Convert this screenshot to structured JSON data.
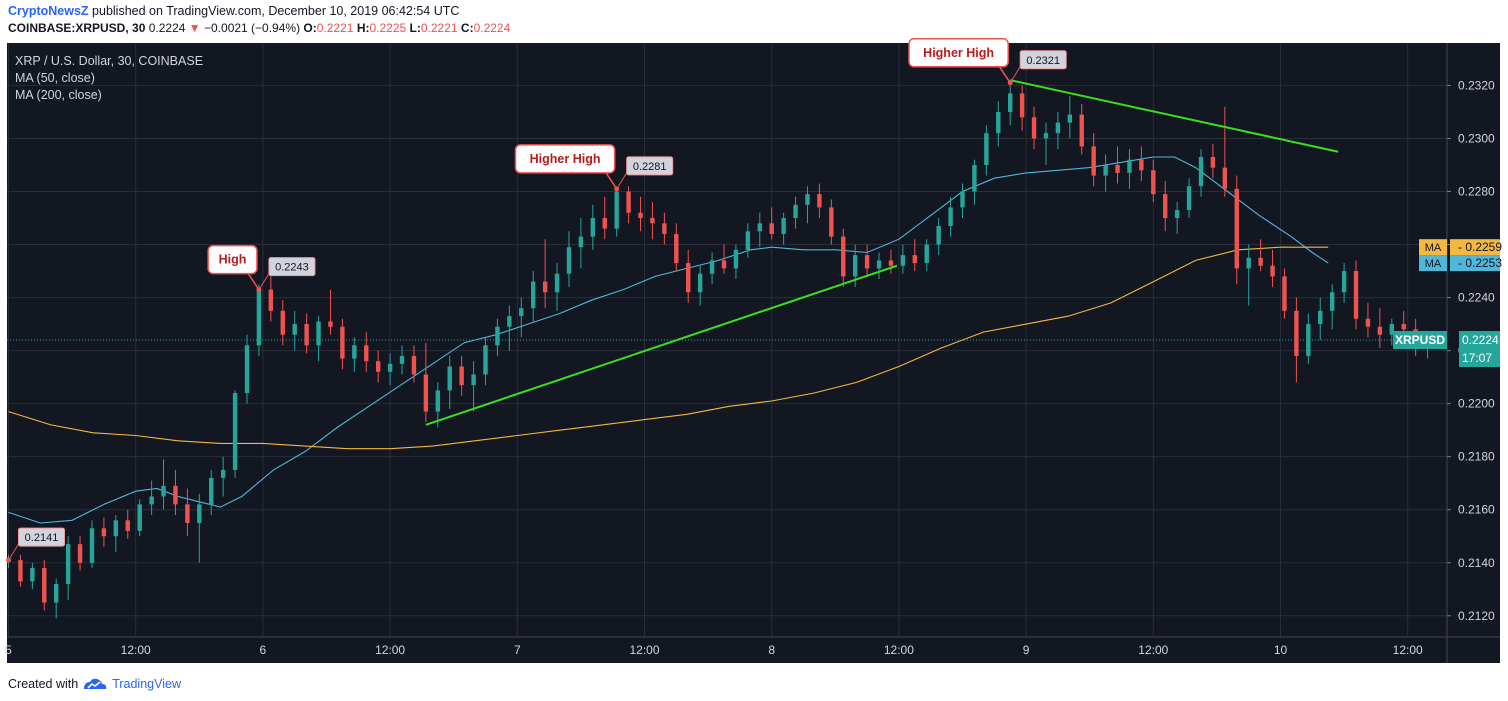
{
  "header": {
    "brand": "CryptoNewsZ",
    "published": " published on TradingView.com, December 10, 2019 06:42:54 UTC",
    "symbol": "COINBASE:XRPUSD, 30",
    "last": "0.2224",
    "change_arrow": "▼",
    "change": "−0.0021 (−0.94%)",
    "o_label": "O:",
    "o": "0.2221",
    "h_label": "H:",
    "h": "0.2225",
    "l_label": "L:",
    "l": "0.2221",
    "c_label": "C:",
    "c": "0.2224"
  },
  "footer": {
    "created": "Created with",
    "tv": "TradingView"
  },
  "colors": {
    "background": "#131722",
    "grid": "#2a2e39",
    "text": "#d1d4dc",
    "up": "#26a69a",
    "down": "#ef5350",
    "ma50": "#4fb7d8",
    "ma200": "#f4b740",
    "trend": "#39e01f",
    "callout_text": "#b71c1c"
  },
  "chart_data": {
    "type": "candlestick",
    "title": "XRP / U.S. Dollar, 30, COINBASE",
    "legend": [
      "MA (50, close)",
      "MA (200, close)"
    ],
    "legend_position": "top-left",
    "grid": true,
    "ylim": [
      0.2112,
      0.2336
    ],
    "y_ticks": [
      "0.2120",
      "0.2140",
      "0.2160",
      "0.2180",
      "0.2200",
      "0.2220",
      "0.2240",
      "0.2260",
      "0.2280",
      "0.2300",
      "0.2320"
    ],
    "x_ticks": [
      "5",
      "12:00",
      "6",
      "12:00",
      "7",
      "12:00",
      "8",
      "12:00",
      "9",
      "12:00",
      "10",
      "12:00"
    ],
    "x_tick_hours": [
      0,
      12,
      24,
      36,
      48,
      60,
      72,
      84,
      96,
      108,
      120,
      132
    ],
    "candle_interval_hours": 0.5,
    "series": [
      {
        "name": "MA (50, close)",
        "last": "0.2253",
        "points": [
          [
            0,
            0.2159
          ],
          [
            3,
            0.2155
          ],
          [
            6,
            0.2156
          ],
          [
            9,
            0.2162
          ],
          [
            12,
            0.2167
          ],
          [
            14,
            0.2168
          ],
          [
            16,
            0.2165
          ],
          [
            18,
            0.2163
          ],
          [
            20,
            0.2161
          ],
          [
            22,
            0.2165
          ],
          [
            25,
            0.2175
          ],
          [
            28,
            0.2182
          ],
          [
            31,
            0.2191
          ],
          [
            34,
            0.2199
          ],
          [
            37,
            0.2207
          ],
          [
            40,
            0.2215
          ],
          [
            43,
            0.2223
          ],
          [
            46,
            0.2226
          ],
          [
            49,
            0.223
          ],
          [
            52,
            0.2234
          ],
          [
            55,
            0.2239
          ],
          [
            58,
            0.2243
          ],
          [
            61,
            0.2248
          ],
          [
            64,
            0.2251
          ],
          [
            67,
            0.2254
          ],
          [
            70,
            0.2258
          ],
          [
            72,
            0.2259
          ],
          [
            75,
            0.2258
          ],
          [
            78,
            0.2258
          ],
          [
            81,
            0.2257
          ],
          [
            84,
            0.2262
          ],
          [
            87,
            0.2271
          ],
          [
            90,
            0.228
          ],
          [
            93,
            0.2285
          ],
          [
            96,
            0.2287
          ],
          [
            99,
            0.2288
          ],
          [
            102,
            0.2289
          ],
          [
            105,
            0.2291
          ],
          [
            108,
            0.2293
          ],
          [
            110,
            0.2293
          ],
          [
            112,
            0.2289
          ],
          [
            115,
            0.228
          ],
          [
            118,
            0.2271
          ],
          [
            121,
            0.2263
          ],
          [
            123,
            0.2257
          ],
          [
            124.5,
            0.2253
          ]
        ]
      },
      {
        "name": "MA (200, close)",
        "last": "0.2259",
        "points": [
          [
            0,
            0.2197
          ],
          [
            4,
            0.2192
          ],
          [
            8,
            0.2189
          ],
          [
            12,
            0.2188
          ],
          [
            16,
            0.2186
          ],
          [
            20,
            0.2185
          ],
          [
            24,
            0.2185
          ],
          [
            28,
            0.2184
          ],
          [
            32,
            0.2183
          ],
          [
            36,
            0.2183
          ],
          [
            40,
            0.2184
          ],
          [
            44,
            0.2186
          ],
          [
            48,
            0.2188
          ],
          [
            52,
            0.219
          ],
          [
            56,
            0.2192
          ],
          [
            60,
            0.2194
          ],
          [
            64,
            0.2196
          ],
          [
            68,
            0.2199
          ],
          [
            72,
            0.2201
          ],
          [
            76,
            0.2204
          ],
          [
            80,
            0.2208
          ],
          [
            84,
            0.2214
          ],
          [
            88,
            0.2221
          ],
          [
            92,
            0.2227
          ],
          [
            96,
            0.223
          ],
          [
            100,
            0.2233
          ],
          [
            104,
            0.2238
          ],
          [
            108,
            0.2246
          ],
          [
            112,
            0.2254
          ],
          [
            116,
            0.2258
          ],
          [
            120,
            0.2259
          ],
          [
            124.5,
            0.2259
          ]
        ]
      }
    ],
    "candles": [
      [
        0,
        0.2141,
        0.2143,
        0.2138,
        0.2141
      ],
      [
        1,
        0.2141,
        0.2143,
        0.2131,
        0.2133
      ],
      [
        2,
        0.2133,
        0.214,
        0.213,
        0.2138
      ],
      [
        3,
        0.2138,
        0.2141,
        0.2122,
        0.2125
      ],
      [
        4,
        0.2125,
        0.2134,
        0.2119,
        0.2132
      ],
      [
        5,
        0.2132,
        0.215,
        0.2126,
        0.2147
      ],
      [
        6,
        0.2147,
        0.215,
        0.2137,
        0.214
      ],
      [
        7,
        0.214,
        0.2156,
        0.2138,
        0.2153
      ],
      [
        8,
        0.2153,
        0.2157,
        0.2146,
        0.215
      ],
      [
        9,
        0.215,
        0.2158,
        0.2144,
        0.2156
      ],
      [
        10,
        0.2156,
        0.216,
        0.2149,
        0.2152
      ],
      [
        11,
        0.2152,
        0.2164,
        0.215,
        0.2162
      ],
      [
        12,
        0.2162,
        0.2171,
        0.2158,
        0.2165
      ],
      [
        13,
        0.2165,
        0.2179,
        0.216,
        0.2169
      ],
      [
        14,
        0.2169,
        0.2175,
        0.2158,
        0.2162
      ],
      [
        15,
        0.2162,
        0.2168,
        0.215,
        0.2155
      ],
      [
        16,
        0.2155,
        0.2166,
        0.214,
        0.2162
      ],
      [
        17,
        0.2162,
        0.2175,
        0.2158,
        0.2172
      ],
      [
        18,
        0.2172,
        0.218,
        0.2165,
        0.2175
      ],
      [
        19,
        0.2175,
        0.2205,
        0.2172,
        0.2204
      ],
      [
        20,
        0.2204,
        0.2226,
        0.22,
        0.2222
      ],
      [
        21,
        0.2222,
        0.2245,
        0.2218,
        0.2243
      ],
      [
        22,
        0.2243,
        0.2248,
        0.2231,
        0.2235
      ],
      [
        23,
        0.2235,
        0.2239,
        0.2222,
        0.2226
      ],
      [
        24,
        0.2226,
        0.2235,
        0.222,
        0.223
      ],
      [
        25,
        0.223,
        0.2234,
        0.2219,
        0.2222
      ],
      [
        26,
        0.2222,
        0.2233,
        0.2216,
        0.2231
      ],
      [
        27,
        0.2231,
        0.2243,
        0.2226,
        0.2229
      ],
      [
        28,
        0.2229,
        0.2232,
        0.2213,
        0.2217
      ],
      [
        29,
        0.2217,
        0.2225,
        0.2212,
        0.2222
      ],
      [
        30,
        0.2222,
        0.2227,
        0.2212,
        0.2216
      ],
      [
        31,
        0.2216,
        0.222,
        0.2208,
        0.2212
      ],
      [
        32,
        0.2212,
        0.2219,
        0.2207,
        0.2215
      ],
      [
        33,
        0.2215,
        0.2222,
        0.2211,
        0.2218
      ],
      [
        34,
        0.2218,
        0.2222,
        0.2208,
        0.2211
      ],
      [
        35,
        0.2211,
        0.2223,
        0.2193,
        0.2197
      ],
      [
        36,
        0.2197,
        0.2208,
        0.2191,
        0.2205
      ],
      [
        37,
        0.2205,
        0.2218,
        0.2198,
        0.2214
      ],
      [
        38,
        0.2214,
        0.2218,
        0.2203,
        0.2207
      ],
      [
        39,
        0.2207,
        0.2216,
        0.2197,
        0.2211
      ],
      [
        40,
        0.2211,
        0.2225,
        0.2207,
        0.2222
      ],
      [
        41,
        0.2222,
        0.2232,
        0.2218,
        0.2229
      ],
      [
        42,
        0.2229,
        0.2237,
        0.222,
        0.2233
      ],
      [
        43,
        0.2233,
        0.224,
        0.2225,
        0.2236
      ],
      [
        44,
        0.2236,
        0.225,
        0.2231,
        0.2246
      ],
      [
        45,
        0.2246,
        0.2262,
        0.2236,
        0.2242
      ],
      [
        46,
        0.2242,
        0.2253,
        0.2235,
        0.2249
      ],
      [
        47,
        0.2249,
        0.2265,
        0.2244,
        0.2259
      ],
      [
        48,
        0.2259,
        0.227,
        0.2251,
        0.2263
      ],
      [
        49,
        0.2263,
        0.2275,
        0.2258,
        0.227
      ],
      [
        50,
        0.227,
        0.2278,
        0.2262,
        0.2266
      ],
      [
        51,
        0.2266,
        0.2281,
        0.2263,
        0.228
      ],
      [
        52,
        0.228,
        0.2282,
        0.2268,
        0.2272
      ],
      [
        53,
        0.2272,
        0.2278,
        0.2265,
        0.227
      ],
      [
        54,
        0.227,
        0.2276,
        0.2262,
        0.2268
      ],
      [
        55,
        0.2268,
        0.2272,
        0.226,
        0.2264
      ],
      [
        56,
        0.2264,
        0.2268,
        0.225,
        0.2253
      ],
      [
        57,
        0.2253,
        0.2258,
        0.2238,
        0.2242
      ],
      [
        58,
        0.2242,
        0.2252,
        0.2237,
        0.2249
      ],
      [
        59,
        0.2249,
        0.2257,
        0.2245,
        0.2254
      ],
      [
        60,
        0.2254,
        0.226,
        0.2249,
        0.2251
      ],
      [
        61,
        0.2251,
        0.226,
        0.2247,
        0.2258
      ],
      [
        62,
        0.2258,
        0.2268,
        0.2255,
        0.2265
      ],
      [
        63,
        0.2265,
        0.2272,
        0.2259,
        0.2268
      ],
      [
        64,
        0.2268,
        0.2274,
        0.2262,
        0.2264
      ],
      [
        65,
        0.2264,
        0.2272,
        0.226,
        0.227
      ],
      [
        66,
        0.227,
        0.2278,
        0.2266,
        0.2275
      ],
      [
        67,
        0.2275,
        0.2282,
        0.2268,
        0.2279
      ],
      [
        68,
        0.2279,
        0.2283,
        0.227,
        0.2274
      ],
      [
        69,
        0.2274,
        0.2277,
        0.226,
        0.2263
      ],
      [
        70,
        0.2263,
        0.2266,
        0.2244,
        0.2248
      ],
      [
        71,
        0.2248,
        0.226,
        0.2244,
        0.2256
      ],
      [
        72,
        0.2256,
        0.226,
        0.2248,
        0.2251
      ],
      [
        73,
        0.2251,
        0.2257,
        0.2247,
        0.2254
      ],
      [
        74,
        0.2254,
        0.2258,
        0.2249,
        0.2252
      ],
      [
        75,
        0.2252,
        0.226,
        0.2249,
        0.2256
      ],
      [
        76,
        0.2256,
        0.2262,
        0.225,
        0.2253
      ],
      [
        77,
        0.2253,
        0.2262,
        0.225,
        0.226
      ],
      [
        78,
        0.226,
        0.227,
        0.2256,
        0.2267
      ],
      [
        79,
        0.2267,
        0.2278,
        0.2263,
        0.2274
      ],
      [
        80,
        0.2274,
        0.2283,
        0.227,
        0.228
      ],
      [
        81,
        0.228,
        0.2292,
        0.2275,
        0.229
      ],
      [
        82,
        0.229,
        0.2305,
        0.2286,
        0.2302
      ],
      [
        83,
        0.2302,
        0.2314,
        0.2297,
        0.231
      ],
      [
        84,
        0.231,
        0.2321,
        0.2305,
        0.2317
      ],
      [
        85,
        0.2317,
        0.232,
        0.2303,
        0.2308
      ],
      [
        86,
        0.2308,
        0.2312,
        0.2296,
        0.23
      ],
      [
        87,
        0.23,
        0.2306,
        0.229,
        0.2302
      ],
      [
        88,
        0.2302,
        0.231,
        0.2296,
        0.2306
      ],
      [
        89,
        0.2306,
        0.2316,
        0.23,
        0.2309
      ],
      [
        90,
        0.2309,
        0.2313,
        0.2294,
        0.2297
      ],
      [
        91,
        0.2297,
        0.2302,
        0.2282,
        0.2286
      ],
      [
        92,
        0.2286,
        0.2294,
        0.228,
        0.229
      ],
      [
        93,
        0.229,
        0.2297,
        0.2283,
        0.2287
      ],
      [
        94,
        0.2287,
        0.2296,
        0.2281,
        0.2292
      ],
      [
        95,
        0.2292,
        0.2297,
        0.2284,
        0.2288
      ],
      [
        96,
        0.2288,
        0.2292,
        0.2276,
        0.2279
      ],
      [
        97,
        0.2279,
        0.2284,
        0.2265,
        0.227
      ],
      [
        98,
        0.227,
        0.2276,
        0.2264,
        0.2273
      ],
      [
        99,
        0.2273,
        0.2285,
        0.227,
        0.2282
      ],
      [
        100,
        0.2282,
        0.2296,
        0.2278,
        0.2293
      ],
      [
        101,
        0.2293,
        0.2298,
        0.2285,
        0.2289
      ],
      [
        102,
        0.2289,
        0.2312,
        0.2278,
        0.2281
      ],
      [
        103,
        0.2281,
        0.2286,
        0.2245,
        0.2251
      ],
      [
        104,
        0.2251,
        0.226,
        0.2237,
        0.2255
      ],
      [
        105,
        0.2255,
        0.2262,
        0.225,
        0.2252
      ],
      [
        106,
        0.2252,
        0.2258,
        0.2244,
        0.2248
      ],
      [
        107,
        0.2248,
        0.2251,
        0.2232,
        0.2235
      ],
      [
        108,
        0.2235,
        0.224,
        0.2208,
        0.2218
      ],
      [
        109,
        0.2218,
        0.2234,
        0.2215,
        0.223
      ],
      [
        110,
        0.223,
        0.224,
        0.2224,
        0.2235
      ],
      [
        111,
        0.2235,
        0.2245,
        0.2228,
        0.2242
      ],
      [
        112,
        0.2242,
        0.2253,
        0.2238,
        0.225
      ],
      [
        113,
        0.225,
        0.2254,
        0.2228,
        0.2232
      ],
      [
        114,
        0.2232,
        0.2238,
        0.2225,
        0.2229
      ],
      [
        115,
        0.2229,
        0.2236,
        0.2221,
        0.2226
      ],
      [
        116,
        0.2226,
        0.2232,
        0.2222,
        0.223
      ],
      [
        117,
        0.223,
        0.2235,
        0.2225,
        0.2228
      ],
      [
        118,
        0.2228,
        0.2232,
        0.2218,
        0.2221
      ],
      [
        119,
        0.2221,
        0.2225,
        0.2217,
        0.2224
      ]
    ],
    "trendlines": [
      {
        "from": [
          35,
          0.2192
        ],
        "to": [
          74.5,
          0.2252
        ]
      },
      {
        "from": [
          84,
          0.2322
        ],
        "to": [
          111.5,
          0.2295
        ]
      }
    ],
    "annotations": [
      {
        "label": "High",
        "price": "0.2243",
        "at": [
          21,
          0.2243
        ]
      },
      {
        "label": "Higher High",
        "price": "0.2281",
        "at": [
          51,
          0.2281
        ]
      },
      {
        "label": "Higher High",
        "price": "0.2321",
        "at": [
          84,
          0.2321
        ]
      },
      {
        "label": "",
        "price": "0.2141",
        "at": [
          0,
          0.2141
        ]
      }
    ],
    "price_labels": [
      {
        "name": "MA",
        "value": "0.2259",
        "color": "#f4b740"
      },
      {
        "name": "MA",
        "value": "0.2253",
        "color": "#4fb7d8"
      },
      {
        "name": "XRPUSD",
        "value": "0.2224",
        "color": "#26a69a",
        "sub": "17:07"
      }
    ]
  }
}
